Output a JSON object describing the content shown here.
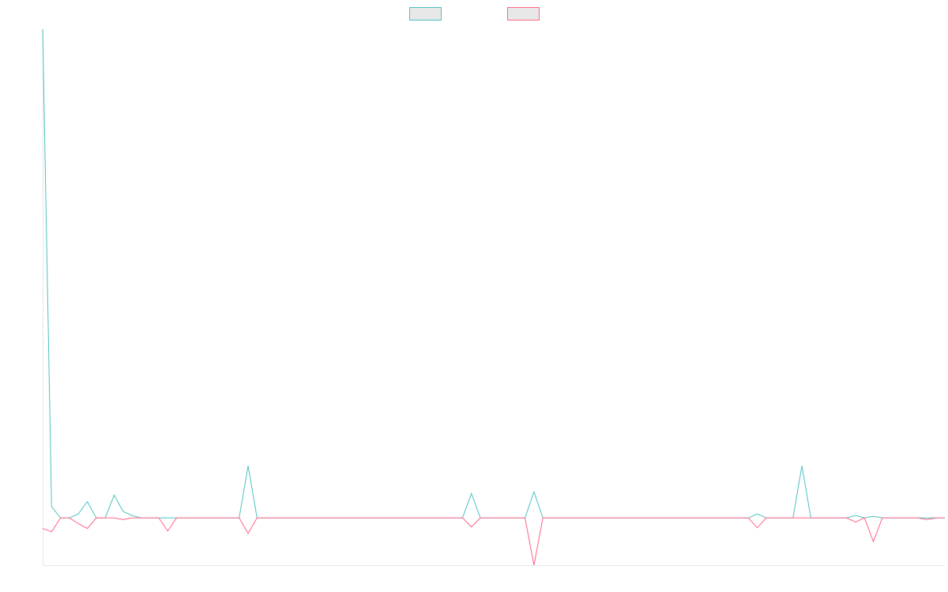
{
  "chart_data": {
    "type": "line",
    "title": "",
    "xlabel": "",
    "ylabel": "",
    "grid": false,
    "legend_position": "top-center",
    "x_count": 102,
    "series": [
      {
        "name": "",
        "color": "#4bc0c0",
        "values": [
          600,
          14,
          0,
          0,
          5,
          20,
          0,
          0,
          28,
          8,
          3,
          0,
          0,
          0,
          0,
          0,
          0,
          0,
          0,
          0,
          0,
          0,
          0,
          64,
          0,
          0,
          0,
          0,
          0,
          0,
          0,
          0,
          0,
          0,
          0,
          0,
          0,
          0,
          0,
          0,
          0,
          0,
          0,
          0,
          0,
          0,
          0,
          0,
          30,
          0,
          0,
          0,
          0,
          0,
          0,
          32,
          0,
          0,
          0,
          0,
          0,
          0,
          0,
          0,
          0,
          0,
          0,
          0,
          0,
          0,
          0,
          0,
          0,
          0,
          0,
          0,
          0,
          0,
          0,
          0,
          5,
          0,
          0,
          0,
          0,
          64,
          0,
          0,
          0,
          0,
          0,
          3,
          0,
          2,
          0,
          0,
          0,
          0,
          0,
          0,
          0,
          0
        ]
      },
      {
        "name": "",
        "color": "#ff6384",
        "values": [
          -13,
          -17,
          0,
          0,
          -7,
          -13,
          0,
          0,
          0,
          -2,
          0,
          0,
          0,
          0,
          -16,
          0,
          0,
          0,
          0,
          0,
          0,
          0,
          0,
          -19,
          0,
          0,
          0,
          0,
          0,
          0,
          0,
          0,
          0,
          0,
          0,
          0,
          0,
          0,
          0,
          0,
          0,
          0,
          0,
          0,
          0,
          0,
          0,
          0,
          -11,
          0,
          0,
          0,
          0,
          0,
          0,
          -58,
          0,
          0,
          0,
          0,
          0,
          0,
          0,
          0,
          0,
          0,
          0,
          0,
          0,
          0,
          0,
          0,
          0,
          0,
          0,
          0,
          0,
          0,
          0,
          0,
          -12,
          0,
          0,
          0,
          0,
          0,
          0,
          0,
          0,
          0,
          0,
          -5,
          0,
          -29,
          0,
          0,
          0,
          0,
          0,
          -2,
          0,
          0
        ]
      }
    ],
    "ylim": [
      -58,
      600
    ]
  }
}
